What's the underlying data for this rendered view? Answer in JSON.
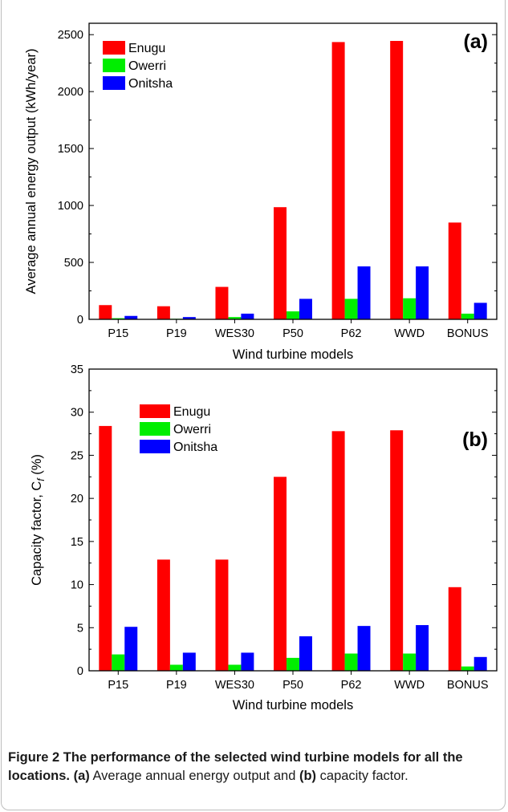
{
  "chart_data": [
    {
      "type": "bar",
      "panel_label": "(a)",
      "categories": [
        "P15",
        "P19",
        "WES30",
        "P50",
        "P62",
        "WWD",
        "BONUS"
      ],
      "series": [
        {
          "name": "Enugu",
          "color": "#ff0000",
          "values": [
            125,
            115,
            285,
            985,
            2435,
            2445,
            850
          ]
        },
        {
          "name": "Owerri",
          "color": "#00ee00",
          "values": [
            10,
            5,
            20,
            70,
            180,
            185,
            50
          ]
        },
        {
          "name": "Onitsha",
          "color": "#0000ff",
          "values": [
            30,
            20,
            50,
            180,
            465,
            465,
            145
          ]
        }
      ],
      "xlabel": "Wind turbine models",
      "ylabel": "Average annual energy output (kWh/year)",
      "ylim": [
        0,
        2600
      ],
      "yticks": [
        "0",
        "500",
        "1000",
        "1500",
        "2000",
        "2500"
      ],
      "legend_position": "top-left",
      "grid": false
    },
    {
      "type": "bar",
      "panel_label": "(b)",
      "categories": [
        "P15",
        "P19",
        "WES30",
        "P50",
        "P62",
        "WWD",
        "BONUS"
      ],
      "series": [
        {
          "name": "Enugu",
          "color": "#ff0000",
          "values": [
            28.4,
            12.9,
            12.9,
            22.5,
            27.8,
            27.9,
            9.7
          ]
        },
        {
          "name": "Owerri",
          "color": "#00ee00",
          "values": [
            1.9,
            0.7,
            0.7,
            1.5,
            2.0,
            2.0,
            0.5
          ]
        },
        {
          "name": "Onitsha",
          "color": "#0000ff",
          "values": [
            5.1,
            2.1,
            2.1,
            4.0,
            5.2,
            5.3,
            1.6
          ]
        }
      ],
      "xlabel": "Wind turbine models",
      "ylabel": "Capacity factor, C",
      "ylabel_subscript": "f",
      "ylabel_unit": "(%)",
      "ylim": [
        0,
        35
      ],
      "yticks": [
        "0",
        "5",
        "10",
        "15",
        "20",
        "25",
        "30",
        "35"
      ],
      "legend_position": "top-left",
      "grid": false
    }
  ],
  "caption": {
    "bold": "Figure 2 The performance of the selected wind turbine models for all the locations.",
    "part1_label": "(a)",
    "part1_text": "Average annual energy output and",
    "part2_label": "(b)",
    "part2_text": "capacity factor."
  }
}
